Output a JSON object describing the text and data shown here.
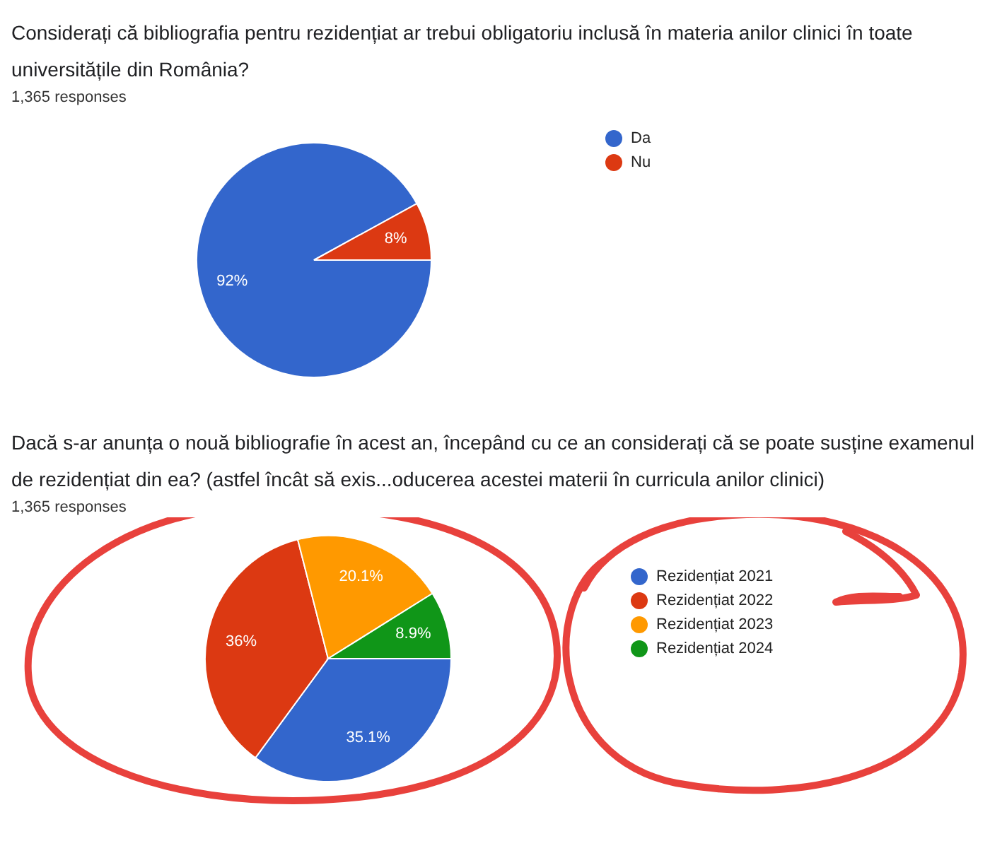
{
  "chart_data": [
    {
      "type": "pie",
      "title": "Considerați că bibliografia pentru rezidențiat ar trebui obligatoriu inclusă în materia anilor clinici în toate universitățile din România?",
      "subtitle": "1,365 responses",
      "categories": [
        "Da",
        "Nu"
      ],
      "values": [
        92,
        8
      ],
      "colors": [
        "#3366cc",
        "#dc3912"
      ],
      "value_labels": [
        "92%",
        "8%"
      ],
      "legend": "right"
    },
    {
      "type": "pie",
      "title": "Dacă s-ar anunța o nouă bibliografie în acest an, începând cu ce an considerați că se poate susține examenul de rezidențiat din ea? (astfel încât să exis...oducerea acestei materii în curricula anilor clinici)",
      "subtitle": "1,365 responses",
      "categories": [
        "Rezidențiat 2021",
        "Rezidențiat 2022",
        "Rezidențiat 2023",
        "Rezidențiat 2024"
      ],
      "values": [
        35.1,
        36,
        20.1,
        8.9
      ],
      "colors": [
        "#3366cc",
        "#dc3912",
        "#ff9900",
        "#109618"
      ],
      "value_labels": [
        "35.1%",
        "36%",
        "20.1%",
        "8.9%"
      ],
      "legend": "right"
    }
  ]
}
